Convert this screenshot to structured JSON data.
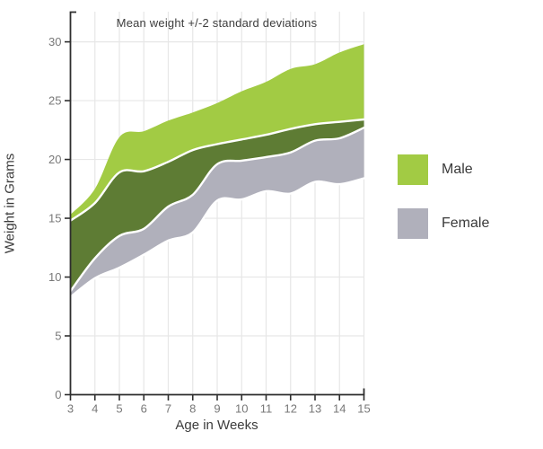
{
  "title": "Mean weight +/-2 standard deviations",
  "x_axis_title": "Age in Weeks",
  "y_axis_title": "Weight in Grams",
  "legend": {
    "items": [
      {
        "label": "Male",
        "color": "#a2cb44"
      },
      {
        "label": "Female",
        "color": "#b0b0bb"
      }
    ]
  },
  "colors": {
    "male_band": "#a2cb44",
    "female_band": "#b0b0bb",
    "overlap_band": "#5e7c34",
    "band_edge_stroke": "#ffffff",
    "grid": "#e7e7e7",
    "axis": "#2e2e2e",
    "tick_label": "#787878"
  },
  "chart_data": {
    "type": "area",
    "subtype": "range-band",
    "title": "Mean weight +/-2 standard deviations",
    "xlabel": "Age in Weeks",
    "ylabel": "Weight in Grams",
    "x": [
      3,
      4,
      5,
      6,
      7,
      8,
      9,
      10,
      11,
      12,
      13,
      14,
      15
    ],
    "series": [
      {
        "name": "Male",
        "color": "#a2cb44",
        "upper": [
          15.3,
          17.5,
          21.9,
          22.4,
          23.3,
          24.0,
          24.8,
          25.8,
          26.6,
          27.7,
          28.1,
          29.1,
          29.8
        ],
        "lower": [
          8.8,
          11.6,
          13.5,
          14.1,
          16.0,
          17.0,
          19.6,
          19.9,
          20.2,
          20.6,
          21.6,
          21.8,
          22.7
        ]
      },
      {
        "name": "Female",
        "color": "#b0b0bb",
        "upper": [
          14.8,
          16.3,
          18.9,
          19.0,
          19.8,
          20.8,
          21.3,
          21.7,
          22.1,
          22.6,
          23.0,
          23.2,
          23.4
        ],
        "lower": [
          8.3,
          9.9,
          10.8,
          11.9,
          13.1,
          13.8,
          16.5,
          16.6,
          17.3,
          17.1,
          18.1,
          17.9,
          18.4
        ]
      }
    ],
    "xlim": [
      3,
      15
    ],
    "ylim": [
      0,
      32.6
    ],
    "xticks": [
      3,
      4,
      5,
      6,
      7,
      8,
      9,
      10,
      11,
      12,
      13,
      14,
      15
    ],
    "yticks": [
      0,
      5,
      10,
      15,
      20,
      25,
      30
    ],
    "grid": true,
    "legend_position": "right",
    "band_opacity_note": "overlap of male over female renders as dark olive"
  }
}
